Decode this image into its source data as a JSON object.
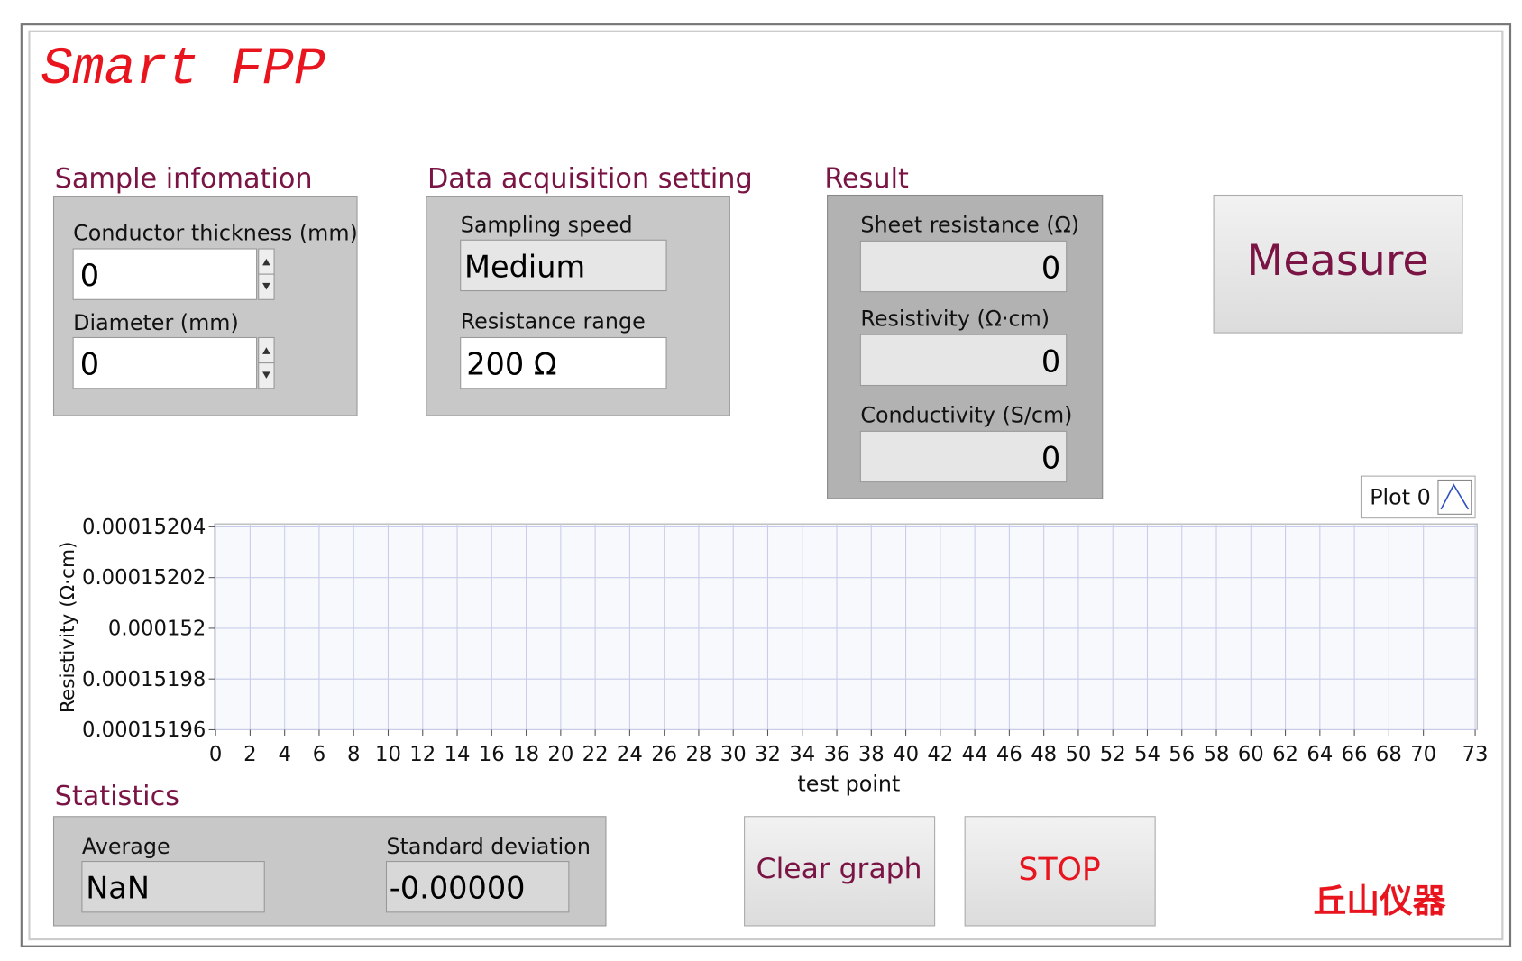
{
  "title": "Smart FPP",
  "sample_information": {
    "heading": "Sample infomation",
    "fields": [
      {
        "label": "Conductor thickness (mm)",
        "value": "0"
      },
      {
        "label": "Diameter (mm)",
        "value": "0"
      }
    ]
  },
  "data_acquisition": {
    "heading": "Data acquisition setting",
    "fields": [
      {
        "label": "Sampling speed",
        "value": "Medium"
      },
      {
        "label": "Resistance range",
        "value": "200 Ω"
      }
    ]
  },
  "result": {
    "heading": "Result",
    "fields": [
      {
        "label": "Sheet resistance (Ω)",
        "value": "0"
      },
      {
        "label": "Resistivity (Ω·cm)",
        "value": "0"
      },
      {
        "label": "Conductivity (S/cm)",
        "value": "0"
      }
    ]
  },
  "buttons": {
    "measure": "Measure",
    "clear_graph": "Clear graph",
    "stop": "STOP"
  },
  "graph": {
    "legend": "Plot 0",
    "x_label": "test point",
    "y_label": "Resistivity (Ω·cm)",
    "xlim": [
      0,
      73
    ],
    "xticks": [
      0,
      2,
      4,
      6,
      8,
      10,
      12,
      14,
      16,
      18,
      20,
      22,
      24,
      26,
      28,
      30,
      32,
      34,
      36,
      38,
      40,
      42,
      44,
      46,
      48,
      50,
      52,
      54,
      56,
      58,
      60,
      62,
      64,
      66,
      68,
      70,
      73
    ],
    "ylim": [
      0.00015196,
      0.00015204
    ],
    "yticks": [
      0.00015196,
      0.00015198,
      0.000152,
      0.00015202,
      0.00015204
    ]
  },
  "statistics": {
    "heading": "Statistics",
    "fields": [
      {
        "label": "Average",
        "value": "NaN"
      },
      {
        "label": "Standard deviation",
        "value": "-0.00000"
      }
    ]
  },
  "brand": "丘山仪器"
}
